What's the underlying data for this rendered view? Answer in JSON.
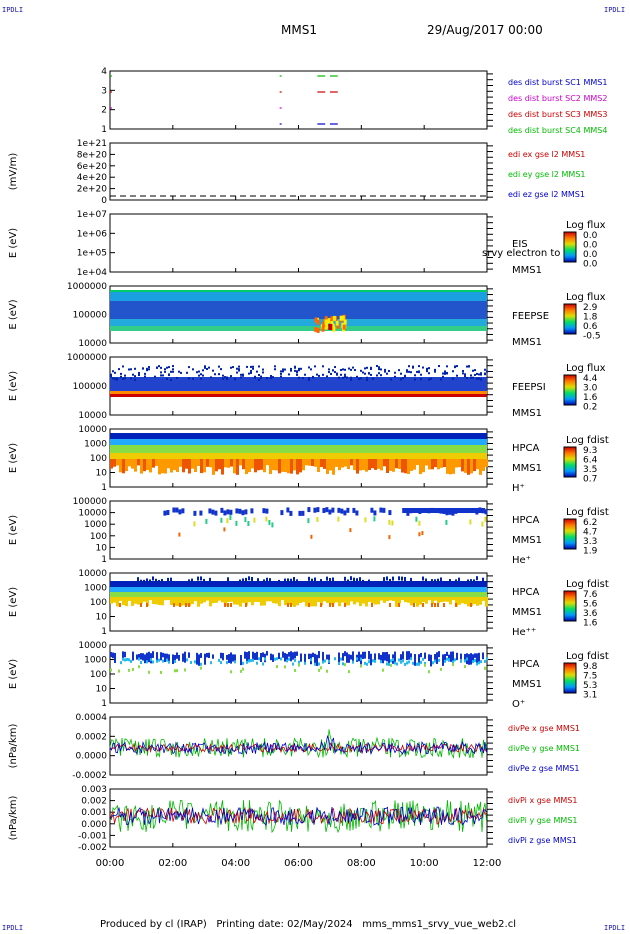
{
  "page": {
    "corner_label": "IPDLI",
    "title": "MMS1",
    "date": "29/Aug/2017 00:00",
    "footer": "Produced by cl (IRAP)   Printing date: 02/May/2024   mms_mms1_srvy_vue_web2.cl"
  },
  "chart_data": [
    {
      "type": "scatter",
      "id": "burst",
      "ylabel": "",
      "y_ticks": [
        "4",
        "3",
        "2",
        "1"
      ],
      "legend": [
        {
          "text": "des dist burst SC1 MMS1",
          "color": "#0000cc"
        },
        {
          "text": "des dist burst SC2 MMS2",
          "color": "#cc00cc"
        },
        {
          "text": "des dist burst SC3 MMS3",
          "color": "#cc0000"
        },
        {
          "text": "des dist burst SC4 MMS4",
          "color": "#00bb00"
        }
      ],
      "segments": [
        {
          "sc": 4,
          "start_h": 0.0,
          "end_h": 0.05
        },
        {
          "sc": 4,
          "start_h": 5.4,
          "end_h": 5.45
        },
        {
          "sc": 4,
          "start_h": 6.6,
          "end_h": 6.85
        },
        {
          "sc": 4,
          "start_h": 7.0,
          "end_h": 7.25
        },
        {
          "sc": 3,
          "start_h": 0.0,
          "end_h": 0.05
        },
        {
          "sc": 3,
          "start_h": 5.4,
          "end_h": 5.45
        },
        {
          "sc": 3,
          "start_h": 6.6,
          "end_h": 6.85
        },
        {
          "sc": 3,
          "start_h": 7.0,
          "end_h": 7.25
        },
        {
          "sc": 2,
          "start_h": 0.0,
          "end_h": 0.05
        },
        {
          "sc": 2,
          "start_h": 5.4,
          "end_h": 5.45
        },
        {
          "sc": 1,
          "start_h": 5.4,
          "end_h": 5.45
        },
        {
          "sc": 1,
          "start_h": 6.6,
          "end_h": 6.85
        },
        {
          "sc": 1,
          "start_h": 7.0,
          "end_h": 7.25
        }
      ]
    },
    {
      "type": "line",
      "id": "edi",
      "ylabel": "(mV/m)",
      "y_ticks": [
        "1e+21",
        "8e+20",
        "6e+20",
        "4e+20",
        "2e+20",
        "0"
      ],
      "legend": [
        {
          "text": "edi ex gse l2 MMS1",
          "color": "#cc0000"
        },
        {
          "text": "edi ey gse l2 MMS1",
          "color": "#00bb00"
        },
        {
          "text": "edi ez gse l2 MMS1",
          "color": "#0000cc"
        }
      ],
      "values": "0 (dashed)"
    },
    {
      "type": "heatmap",
      "id": "eis",
      "ylabel": "E (eV)",
      "y_ticks": [
        "1e+07",
        "1e+06",
        "1e+05",
        "1e+04"
      ],
      "labels": [
        "EIS",
        "MMS1"
      ],
      "overlay_text": "srvy electron to",
      "colorbar_title": "Log flux",
      "colorbar_ticks": [
        "0.0",
        "0.0",
        "0.0",
        "0.0"
      ]
    },
    {
      "type": "heatmap",
      "id": "feeps_e",
      "ylabel": "E (eV)",
      "y_ticks": [
        "1000000",
        "100000",
        "10000"
      ],
      "labels": [
        "FEEPSE",
        "MMS1"
      ],
      "colorbar_title": "Log flux",
      "colorbar_ticks": [
        "2.9",
        "1.8",
        "0.6",
        "-0.5"
      ]
    },
    {
      "type": "heatmap",
      "id": "feeps_i",
      "ylabel": "E (eV)",
      "y_ticks": [
        "1000000",
        "100000",
        "10000"
      ],
      "labels": [
        "FEEPSI",
        "MMS1"
      ],
      "colorbar_title": "Log flux",
      "colorbar_ticks": [
        "4.4",
        "3.0",
        "1.6",
        "0.2"
      ]
    },
    {
      "type": "heatmap",
      "id": "hpca_h",
      "ylabel": "E (eV)",
      "y_ticks": [
        "10000",
        "1000",
        "100",
        "10",
        "1"
      ],
      "labels": [
        "HPCA",
        "MMS1",
        "H⁺"
      ],
      "colorbar_title": "Log fdist",
      "colorbar_ticks": [
        "9.3",
        "6.4",
        "3.5",
        "0.7"
      ]
    },
    {
      "type": "heatmap",
      "id": "hpca_he",
      "ylabel": "E (eV)",
      "y_ticks": [
        "100000",
        "10000",
        "1000",
        "100",
        "10",
        "1"
      ],
      "labels": [
        "HPCA",
        "MMS1",
        "He⁺"
      ],
      "colorbar_title": "Log fdist",
      "colorbar_ticks": [
        "6.2",
        "4.7",
        "3.3",
        "1.9"
      ]
    },
    {
      "type": "heatmap",
      "id": "hpca_hepp",
      "ylabel": "E (eV)",
      "y_ticks": [
        "10000",
        "1000",
        "100",
        "10",
        "1"
      ],
      "labels": [
        "HPCA",
        "MMS1",
        "He⁺⁺"
      ],
      "colorbar_title": "Log fdist",
      "colorbar_ticks": [
        "7.6",
        "5.6",
        "3.6",
        "1.6"
      ]
    },
    {
      "type": "heatmap",
      "id": "hpca_o",
      "ylabel": "E (eV)",
      "y_ticks": [
        "10000",
        "1000",
        "100",
        "10",
        "1"
      ],
      "labels": [
        "HPCA",
        "MMS1",
        "O⁺"
      ],
      "colorbar_title": "Log fdist",
      "colorbar_ticks": [
        "9.8",
        "7.5",
        "5.3",
        "3.1"
      ]
    },
    {
      "type": "line",
      "id": "divpe",
      "ylabel": "(nPa/km)",
      "y_ticks": [
        "0.0004",
        "0.0002",
        "0.0000",
        "-0.0002"
      ],
      "legend": [
        {
          "text": "divPe x gse MMS1",
          "color": "#cc0000"
        },
        {
          "text": "divPe y gse MMS1",
          "color": "#00bb00"
        },
        {
          "text": "divPe z gse MMS1",
          "color": "#0000cc"
        }
      ]
    },
    {
      "type": "line",
      "id": "divpi",
      "ylabel": "(nPa/km)",
      "y_ticks": [
        "0.003",
        "0.002",
        "0.001",
        "0.000",
        "-0.001",
        "-0.002"
      ],
      "legend": [
        {
          "text": "divPi x gse MMS1",
          "color": "#cc0000"
        },
        {
          "text": "divPi y gse MMS1",
          "color": "#00bb00"
        },
        {
          "text": "divPi z gse MMS1",
          "color": "#0000cc"
        }
      ]
    }
  ],
  "x_axis": {
    "ticks": [
      "00:00",
      "02:00",
      "04:00",
      "06:00",
      "08:00",
      "10:00",
      "12:00"
    ],
    "range_hours": [
      0,
      12
    ]
  }
}
